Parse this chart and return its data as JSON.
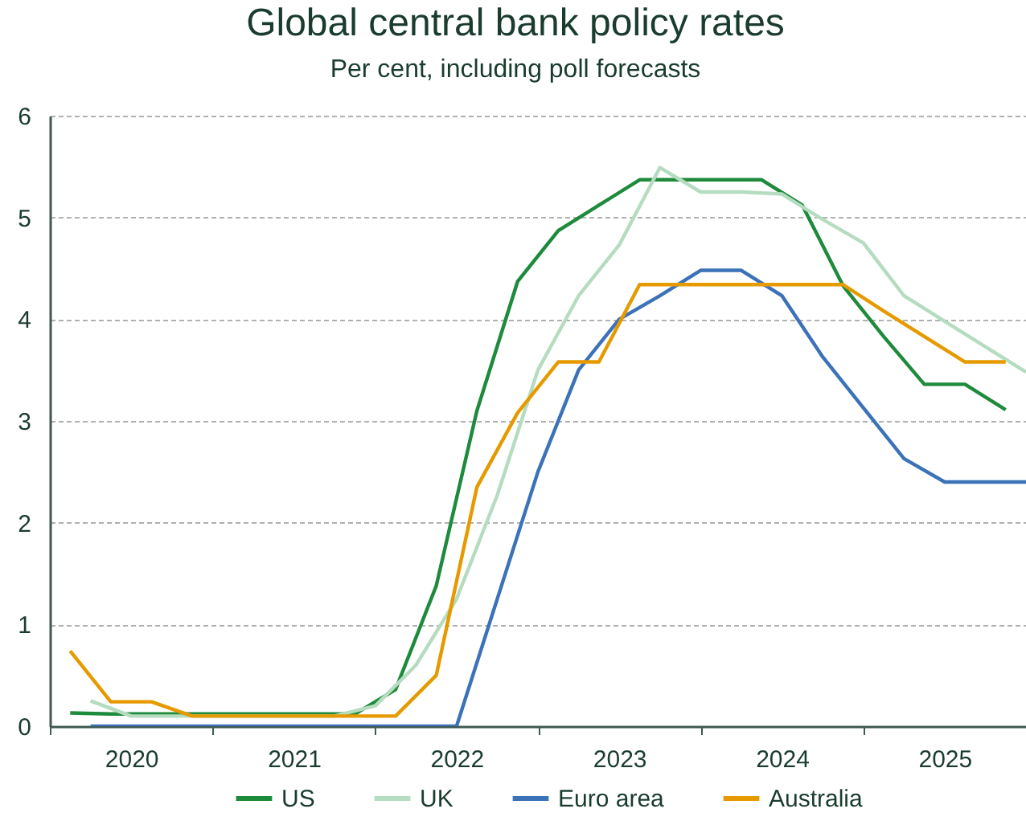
{
  "chart_data": {
    "type": "line",
    "title": "Global central bank policy rates",
    "subtitle": "Per cent, including poll forecasts",
    "xlim": [
      2020,
      2026
    ],
    "xticks": [
      {
        "value": 2020,
        "label": null
      },
      {
        "value": 2020.5,
        "label": "2020"
      },
      {
        "value": 2021,
        "label": null
      },
      {
        "value": 2021.5,
        "label": "2021"
      },
      {
        "value": 2022,
        "label": null
      },
      {
        "value": 2022.5,
        "label": "2022"
      },
      {
        "value": 2023,
        "label": null
      },
      {
        "value": 2023.5,
        "label": "2023"
      },
      {
        "value": 2024,
        "label": null
      },
      {
        "value": 2024.5,
        "label": "2024"
      },
      {
        "value": 2025,
        "label": null
      },
      {
        "value": 2025.5,
        "label": "2025"
      },
      {
        "value": 2026,
        "label": null
      }
    ],
    "ylim": [
      0,
      6
    ],
    "yticks": [
      0,
      1,
      2,
      3,
      4,
      5,
      6
    ],
    "grid": "y",
    "legend": "bottom",
    "line_style": "solid",
    "series": [
      {
        "name": "US",
        "color": "#1e8a3c",
        "x": [
          2020.125,
          2020.375,
          2020.625,
          2020.875,
          2021.125,
          2021.375,
          2021.625,
          2021.875,
          2022.125,
          2022.375,
          2022.625,
          2022.875,
          2023.125,
          2023.375,
          2023.625,
          2023.875,
          2024.125,
          2024.375,
          2024.625,
          2024.875,
          2025.125,
          2025.375,
          2025.625,
          2025.875
        ],
        "values": [
          0.13,
          0.12,
          0.12,
          0.12,
          0.12,
          0.12,
          0.12,
          0.12,
          0.36,
          1.38,
          3.1,
          4.37,
          4.87,
          5.12,
          5.37,
          5.37,
          5.37,
          5.37,
          5.12,
          4.33,
          3.83,
          3.36,
          3.36,
          3.11
        ]
      },
      {
        "name": "UK",
        "color": "#b5dcc0",
        "x": [
          2020.25,
          2020.5,
          2020.75,
          2021,
          2021.25,
          2021.5,
          2021.75,
          2022,
          2022.25,
          2022.5,
          2022.75,
          2023,
          2023.25,
          2023.5,
          2023.75,
          2024,
          2024.25,
          2024.5,
          2024.75,
          2025,
          2025.25,
          2025.5,
          2025.75,
          2026
        ],
        "values": [
          0.25,
          0.1,
          0.1,
          0.1,
          0.1,
          0.1,
          0.1,
          0.2,
          0.6,
          1.25,
          2.27,
          3.5,
          4.23,
          4.73,
          5.49,
          5.25,
          5.25,
          5.23,
          4.98,
          4.75,
          4.23,
          3.98,
          3.73,
          3.48
        ]
      },
      {
        "name": "Euro area",
        "color": "#3b72b8",
        "x": [
          2020.25,
          2020.5,
          2020.75,
          2021,
          2021.25,
          2021.5,
          2021.75,
          2022,
          2022.25,
          2022.5,
          2022.75,
          2023,
          2023.25,
          2023.5,
          2023.75,
          2024,
          2024.25,
          2024.5,
          2024.75,
          2025,
          2025.25,
          2025.5,
          2025.75,
          2026
        ],
        "values": [
          0,
          0,
          0,
          0,
          0,
          0,
          0,
          0,
          0,
          0,
          1.25,
          2.5,
          3.5,
          4.0,
          4.23,
          4.48,
          4.48,
          4.23,
          3.63,
          3.13,
          2.63,
          2.4,
          2.4,
          2.4
        ]
      },
      {
        "name": "Australia",
        "color": "#e69a00",
        "x": [
          2020.125,
          2020.375,
          2020.625,
          2020.875,
          2021.125,
          2021.375,
          2021.625,
          2021.875,
          2022.125,
          2022.375,
          2022.625,
          2022.875,
          2023.125,
          2023.375,
          2023.625,
          2023.875,
          2024.125,
          2024.375,
          2024.625,
          2024.875,
          2025.125,
          2025.375,
          2025.625,
          2025.875
        ],
        "values": [
          0.74,
          0.24,
          0.24,
          0.1,
          0.1,
          0.1,
          0.1,
          0.1,
          0.1,
          0.5,
          2.35,
          3.08,
          3.58,
          3.58,
          4.34,
          4.34,
          4.34,
          4.34,
          4.34,
          4.34,
          4.08,
          3.83,
          3.58,
          3.58
        ]
      }
    ]
  }
}
